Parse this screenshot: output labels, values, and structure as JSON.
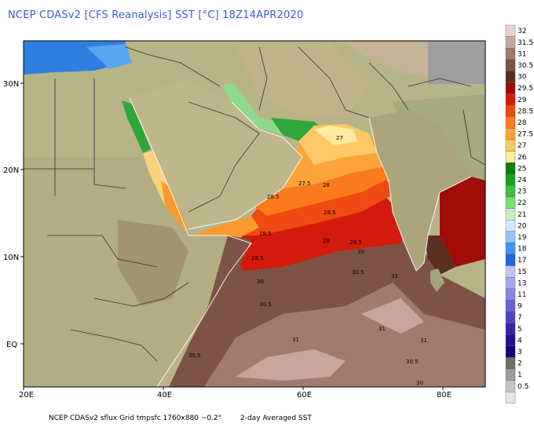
{
  "title": "NCEP CDASv2 [CFS Reanalysis] SST [°C] 18Z14APR2020",
  "footer": {
    "left": "NCEP CDASv2 sflux Grid tmpsfc 1760x880 ~0.2°",
    "right": "2-day Averaged SST"
  },
  "axes": {
    "x_ticks": [
      "20E",
      "40E",
      "60E",
      "80E"
    ],
    "y_ticks": [
      "30N",
      "20N",
      "10N",
      "EQ"
    ]
  },
  "colorbar": {
    "levels": [
      {
        "label": "32",
        "color": "#e8d2cd"
      },
      {
        "label": "31.5",
        "color": "#c9a59c"
      },
      {
        "label": "31",
        "color": "#a27a70"
      },
      {
        "label": "30.5",
        "color": "#7e5246"
      },
      {
        "label": "30",
        "color": "#5b2e22"
      },
      {
        "label": "29.5",
        "color": "#9f0d06"
      },
      {
        "label": "29",
        "color": "#d41a0a"
      },
      {
        "label": "28.5",
        "color": "#ef4a12"
      },
      {
        "label": "28",
        "color": "#fa7a1c"
      },
      {
        "label": "27.5",
        "color": "#fca43a"
      },
      {
        "label": "27",
        "color": "#fdc865"
      },
      {
        "label": "26",
        "color": "#ffe9a3"
      },
      {
        "label": "25",
        "color": "#0b7d12"
      },
      {
        "label": "24",
        "color": "#1a9f22"
      },
      {
        "label": "23",
        "color": "#3cbf3f"
      },
      {
        "label": "22",
        "color": "#7fda7b"
      },
      {
        "label": "21",
        "color": "#c2f0bd"
      },
      {
        "label": "20",
        "color": "#d3e8ff"
      },
      {
        "label": "19",
        "color": "#8fc6ff"
      },
      {
        "label": "18",
        "color": "#3f93f2"
      },
      {
        "label": "17",
        "color": "#1f66d8"
      },
      {
        "label": "15",
        "color": "#c3c3f2"
      },
      {
        "label": "13",
        "color": "#a8a6ec"
      },
      {
        "label": "11",
        "color": "#8a84e2"
      },
      {
        "label": "9",
        "color": "#6c62d4"
      },
      {
        "label": "7",
        "color": "#5042c3"
      },
      {
        "label": "5",
        "color": "#3524ac"
      },
      {
        "label": "4",
        "color": "#220f92"
      },
      {
        "label": "3",
        "color": "#120676"
      },
      {
        "label": "2",
        "color": "#6d6d6d"
      },
      {
        "label": "1",
        "color": "#9b9b9b"
      },
      {
        "label": "0.5",
        "color": "#c4c4c4"
      },
      {
        "label": "",
        "color": "#e6e6e6"
      }
    ]
  },
  "contour_labels": [
    "27",
    "27.5",
    "28",
    "28.5",
    "28.5",
    "28",
    "28.5",
    "29.5",
    "30",
    "28.5",
    "30",
    "30.5",
    "30.5",
    "31",
    "31",
    "31",
    "31",
    "30.5",
    "30.5",
    "30"
  ],
  "colors": {
    "land": "#b6b387",
    "land_dark": "#9c9670",
    "ocean_warm": "#7e5246",
    "border": "#333333"
  }
}
